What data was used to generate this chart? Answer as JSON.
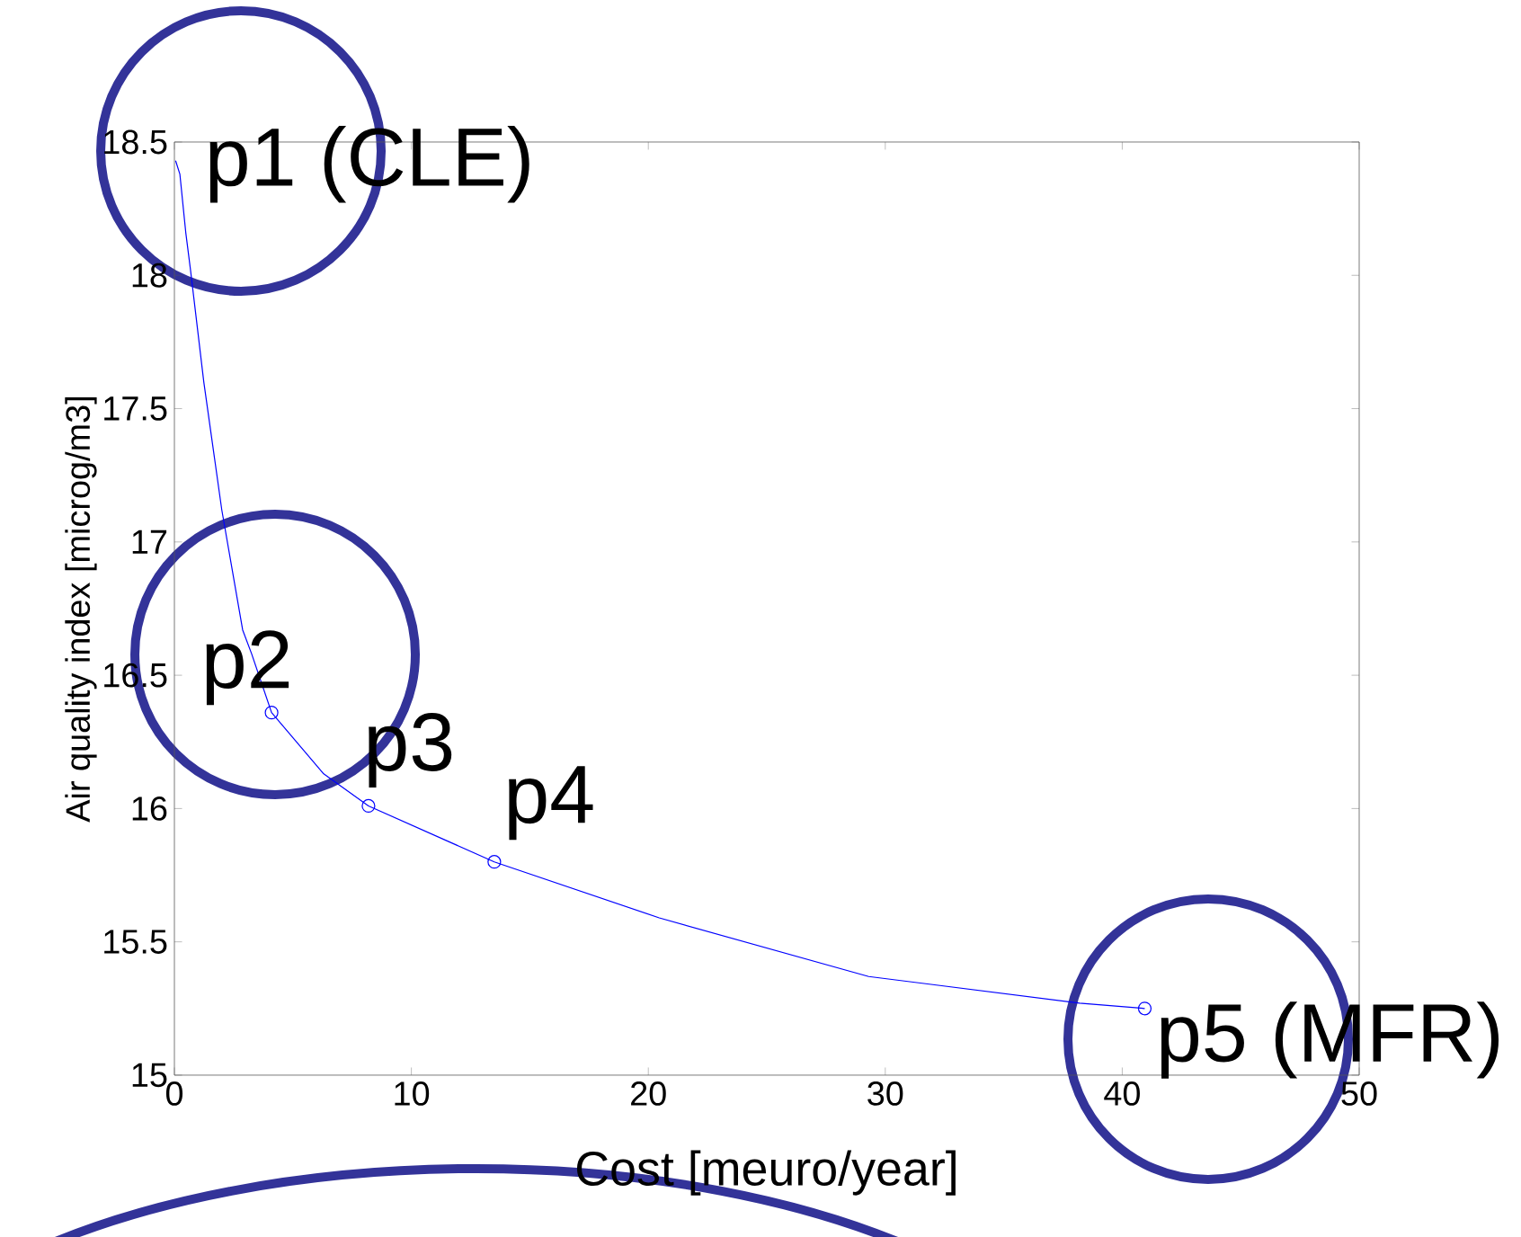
{
  "chart_data": {
    "type": "line",
    "xlabel": "Cost [meuro/year]",
    "ylabel": "Air quality index [microg/m3]",
    "xlim": [
      0,
      50
    ],
    "ylim": [
      15,
      18.5
    ],
    "xticks": [
      0,
      10,
      20,
      30,
      40,
      50
    ],
    "yticks": [
      15,
      15.5,
      16,
      16.5,
      17,
      17.5,
      18,
      18.5
    ],
    "series": [
      {
        "color": "#0000ff",
        "marker": "none",
        "x": [
          0.05,
          0.23,
          0.48,
          0.68,
          1.24,
          2.0,
          2.88,
          3.26,
          4.1,
          6.3,
          8.19,
          13.5,
          20.46,
          29.3,
          38.2,
          40.95
        ],
        "values": [
          18.43,
          18.38,
          18.16,
          18.02,
          17.6,
          17.12,
          16.67,
          16.58,
          16.36,
          16.13,
          16.01,
          15.8,
          15.59,
          15.37,
          15.27,
          15.25
        ]
      },
      {
        "type": "scatter",
        "color": "#0000ff",
        "marker": "circle",
        "x": [
          4.1,
          8.19,
          13.5,
          40.95
        ],
        "values": [
          16.36,
          16.01,
          15.8,
          15.25
        ]
      }
    ],
    "annotations": [
      {
        "text": "p1 (CLE)",
        "x": 0.05,
        "y": 18.43
      },
      {
        "text": "p2",
        "x": 4.1,
        "y": 16.36
      },
      {
        "text": "p3",
        "x": 8.19,
        "y": 16.01
      },
      {
        "text": "p4",
        "x": 13.5,
        "y": 15.8
      },
      {
        "text": "p5 (MFR)",
        "x": 40.95,
        "y": 15.25
      }
    ]
  }
}
